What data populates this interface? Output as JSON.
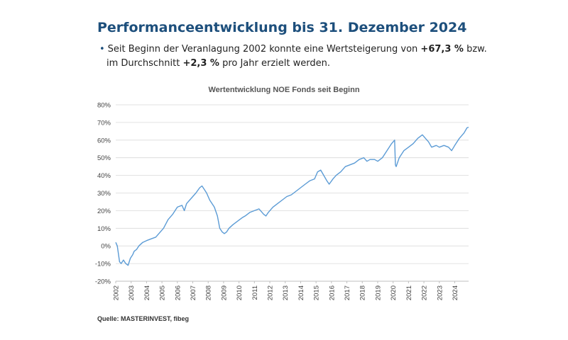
{
  "header": {
    "title": "Performanceentwicklung bis 31. Dezember 2024",
    "bullet_line1_pre": "Seit Beginn der Veranlagung 2002 konnte eine Wertsteigerung von ",
    "bullet_value1": "+67,3 %",
    "bullet_line1_post": " bzw.",
    "bullet_line2_pre": "im Durchschnitt ",
    "bullet_value2": "+2,3 %",
    "bullet_line2_post": " pro Jahr erzielt werden."
  },
  "source": "Quelle: MASTERINVEST, fibeg",
  "colors": {
    "title": "#1d4f7c",
    "line": "#5b9bd5",
    "grid": "#d9d9d9"
  },
  "chart_data": {
    "type": "line",
    "title": "Wertentwicklung NOE Fonds seit Beginn",
    "xlabel": "",
    "ylabel": "",
    "ylim": [
      -20,
      80
    ],
    "xlim": [
      2002,
      2024.9
    ],
    "grid": "horizontal",
    "y_ticks": [
      "-20%",
      "-10%",
      "0%",
      "10%",
      "20%",
      "30%",
      "40%",
      "50%",
      "60%",
      "70%",
      "80%"
    ],
    "x_ticks": [
      "2002",
      "2003",
      "2004",
      "2005",
      "2006",
      "2007",
      "2008",
      "2009",
      "2010",
      "2011",
      "2012",
      "2013",
      "2014",
      "2015",
      "2016",
      "2017",
      "2018",
      "2019",
      "2020",
      "2021",
      "2022",
      "2023",
      "2024"
    ],
    "series": [
      {
        "x": [
          2002.0,
          2002.1,
          2002.25,
          2002.35,
          2002.5,
          2002.65,
          2002.8,
          2002.95,
          2003.1,
          2003.2,
          2003.35,
          2003.5,
          2003.75,
          2004.0,
          2004.3,
          2004.6,
          2004.9,
          2005.1,
          2005.4,
          2005.7,
          2006.0,
          2006.3,
          2006.45,
          2006.6,
          2006.9,
          2007.2,
          2007.45,
          2007.6,
          2007.75,
          2007.9,
          2008.1,
          2008.4,
          2008.6,
          2008.75,
          2008.9,
          2009.05,
          2009.2,
          2009.35,
          2009.6,
          2009.9,
          2010.2,
          2010.4,
          2010.7,
          2011.0,
          2011.3,
          2011.6,
          2011.75,
          2011.9,
          2012.2,
          2012.5,
          2012.8,
          2013.1,
          2013.4,
          2013.7,
          2014.0,
          2014.3,
          2014.6,
          2014.9,
          2015.1,
          2015.3,
          2015.5,
          2015.7,
          2015.85,
          2016.1,
          2016.3,
          2016.6,
          2016.9,
          2017.2,
          2017.5,
          2017.8,
          2018.1,
          2018.3,
          2018.5,
          2018.8,
          2019.0,
          2019.3,
          2019.6,
          2019.9,
          2020.1,
          2020.15,
          2020.2,
          2020.4,
          2020.7,
          2021.0,
          2021.3,
          2021.6,
          2021.9,
          2022.1,
          2022.3,
          2022.5,
          2022.8,
          2023.0,
          2023.3,
          2023.6,
          2023.8,
          2024.0,
          2024.3,
          2024.6,
          2024.8,
          2024.9
        ],
        "values": [
          2,
          0,
          -9,
          -10,
          -8,
          -10,
          -11,
          -7,
          -5,
          -3,
          -2,
          0,
          2,
          3,
          4,
          5,
          8,
          10,
          15,
          18,
          22,
          23,
          20,
          24,
          27,
          30,
          33,
          34,
          32,
          30,
          26,
          22,
          17,
          10,
          8,
          7,
          8,
          10,
          12,
          14,
          16,
          17,
          19,
          20,
          21,
          18,
          17,
          19,
          22,
          24,
          26,
          28,
          29,
          31,
          33,
          35,
          37,
          38,
          42,
          43,
          40,
          37,
          35,
          38,
          40,
          42,
          45,
          46,
          47,
          49,
          50,
          48,
          49,
          49,
          48,
          50,
          54,
          58,
          60,
          46,
          45,
          50,
          54,
          56,
          58,
          61,
          63,
          61,
          59,
          56,
          57,
          56,
          57,
          56,
          54,
          57,
          61,
          64,
          67,
          67.3
        ]
      }
    ]
  }
}
